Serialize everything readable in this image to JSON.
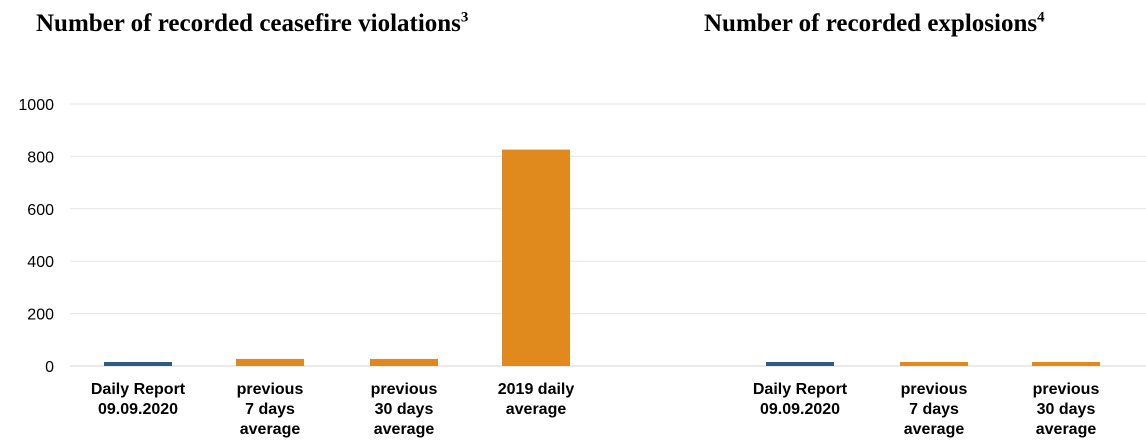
{
  "chart_data": [
    {
      "type": "bar",
      "title": "Number of recorded ceasefire violations",
      "title_footnote": "3",
      "categories": [
        [
          "Daily Report",
          "09.09.2020"
        ],
        [
          "previous",
          "7 days",
          "average"
        ],
        [
          "previous",
          "30 days",
          "average"
        ],
        [
          "2019 daily",
          "average"
        ]
      ],
      "values": [
        6,
        27,
        27,
        826
      ],
      "bar_colors": [
        "#2e5b84",
        "#e08a1e",
        "#e08a1e",
        "#e08a1e"
      ],
      "ylim": [
        0,
        1000
      ],
      "yticks": [
        0,
        200,
        400,
        600,
        800,
        1000
      ],
      "grid": true,
      "xlabel": "",
      "ylabel": ""
    },
    {
      "type": "bar",
      "title": "Number of recorded explosions",
      "title_footnote": "4",
      "categories": [
        [
          "Daily Report",
          "09.09.2020"
        ],
        [
          "previous",
          "7 days",
          "average"
        ],
        [
          "previous",
          "30 days",
          "average"
        ]
      ],
      "values": [
        6,
        6,
        6
      ],
      "bar_colors": [
        "#2e5b84",
        "#e08a1e",
        "#e08a1e"
      ],
      "ylim": [
        0,
        1000
      ],
      "grid": true,
      "xlabel": "",
      "ylabel": ""
    }
  ]
}
